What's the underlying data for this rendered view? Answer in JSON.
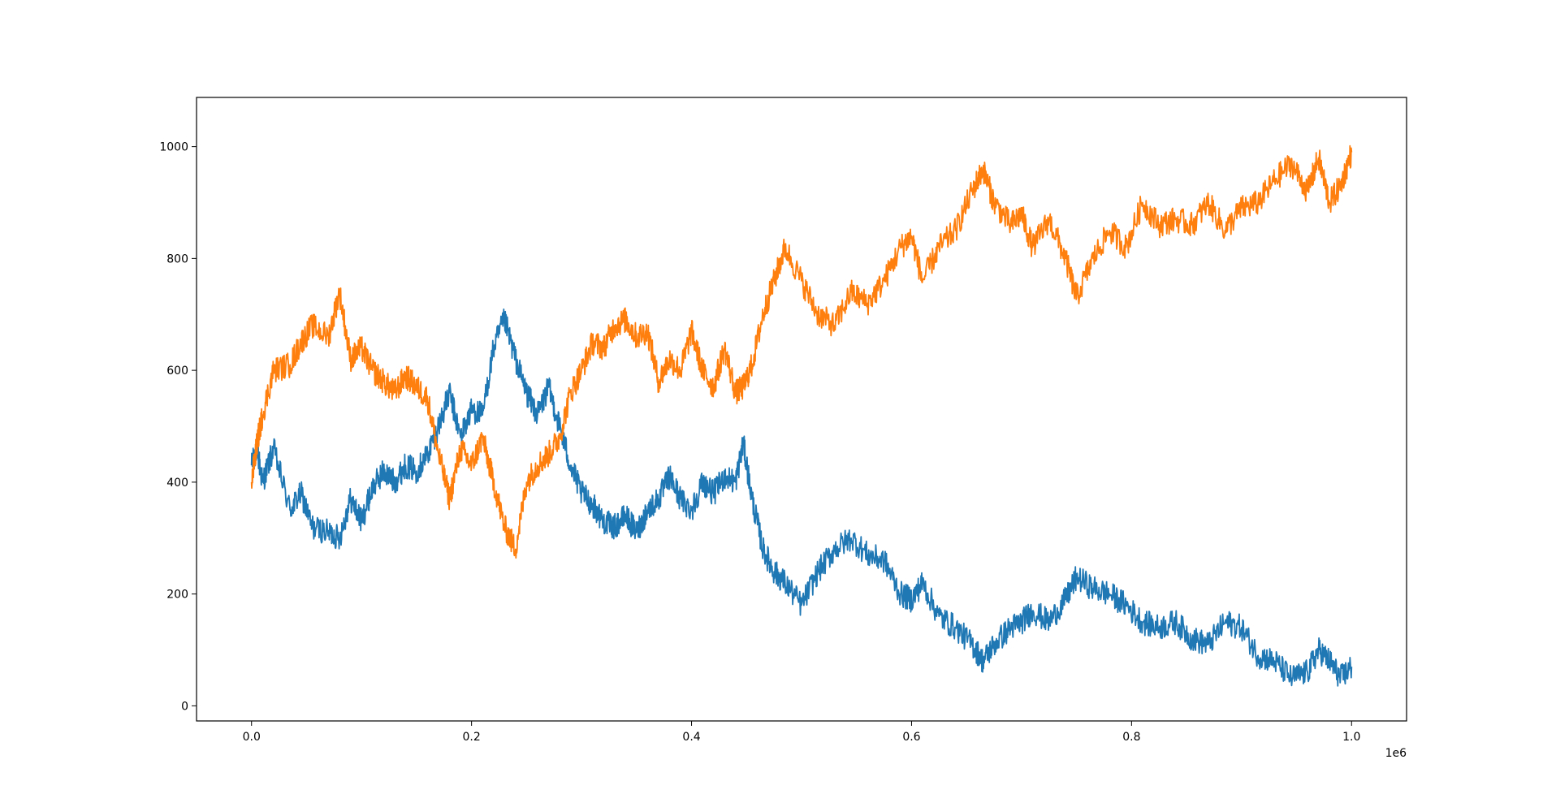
{
  "chart_data": {
    "type": "line",
    "title": "",
    "xlabel": "",
    "ylabel": "",
    "x_offset_text": "1e6",
    "xlim": [
      -50000,
      1050000
    ],
    "ylim": [
      -27,
      1088
    ],
    "xticks": [
      0,
      200000,
      400000,
      600000,
      800000,
      1000000
    ],
    "xtick_labels": [
      "0.0",
      "0.2",
      "0.4",
      "0.6",
      "0.8",
      "1.0"
    ],
    "yticks": [
      0,
      200,
      400,
      600,
      800,
      1000
    ],
    "ytick_labels": [
      "0",
      "200",
      "400",
      "600",
      "800",
      "1000"
    ],
    "grid": false,
    "legend": false,
    "series": [
      {
        "color": "#1f77b4",
        "x": [
          0,
          5000,
          10000,
          20000,
          35000,
          45000,
          55000,
          70000,
          80000,
          90000,
          100000,
          110000,
          120000,
          130000,
          140000,
          150000,
          160000,
          170000,
          180000,
          190000,
          200000,
          210000,
          220000,
          230000,
          240000,
          250000,
          260000,
          270000,
          280000,
          290000,
          300000,
          310000,
          320000,
          330000,
          340000,
          350000,
          360000,
          370000,
          380000,
          390000,
          400000,
          410000,
          420000,
          430000,
          440000,
          447000,
          455000,
          465000,
          475000,
          485000,
          500000,
          515000,
          530000,
          545000,
          560000,
          575000,
          590000,
          600000,
          610000,
          625000,
          640000,
          655000,
          665000,
          675000,
          690000,
          700000,
          710000,
          725000,
          740000,
          750000,
          765000,
          780000,
          795000,
          810000,
          825000,
          840000,
          855000,
          870000,
          885000,
          900000,
          915000,
          930000,
          945000,
          960000,
          970000,
          980000,
          990000,
          1000000
        ],
        "y": [
          430,
          460,
          400,
          460,
          350,
          380,
          320,
          310,
          300,
          370,
          330,
          390,
          420,
          400,
          430,
          420,
          450,
          500,
          560,
          480,
          530,
          520,
          640,
          690,
          620,
          560,
          520,
          570,
          500,
          430,
          380,
          360,
          330,
          320,
          340,
          310,
          350,
          370,
          410,
          370,
          350,
          400,
          380,
          410,
          400,
          470,
          370,
          280,
          240,
          220,
          180,
          240,
          280,
          300,
          270,
          260,
          200,
          190,
          220,
          160,
          140,
          110,
          80,
          110,
          140,
          150,
          170,
          150,
          190,
          230,
          210,
          200,
          180,
          150,
          140,
          150,
          120,
          110,
          150,
          140,
          90,
          80,
          50,
          60,
          100,
          80,
          50,
          70
        ]
      },
      {
        "color": "#ff7f0e",
        "x": [
          0,
          5000,
          10000,
          20000,
          35000,
          45000,
          55000,
          70000,
          80000,
          90000,
          100000,
          110000,
          120000,
          130000,
          140000,
          150000,
          160000,
          170000,
          180000,
          190000,
          200000,
          210000,
          220000,
          230000,
          240000,
          250000,
          260000,
          270000,
          280000,
          290000,
          300000,
          310000,
          320000,
          330000,
          340000,
          350000,
          360000,
          370000,
          380000,
          390000,
          400000,
          410000,
          420000,
          430000,
          440000,
          447000,
          455000,
          465000,
          475000,
          485000,
          500000,
          515000,
          530000,
          545000,
          560000,
          575000,
          590000,
          600000,
          610000,
          625000,
          640000,
          655000,
          665000,
          675000,
          690000,
          700000,
          710000,
          725000,
          740000,
          750000,
          765000,
          780000,
          795000,
          810000,
          825000,
          840000,
          855000,
          870000,
          885000,
          900000,
          915000,
          930000,
          945000,
          960000,
          970000,
          980000,
          990000,
          1000000
        ],
        "y": [
          400,
          470,
          520,
          600,
          610,
          650,
          680,
          660,
          740,
          620,
          640,
          600,
          580,
          560,
          590,
          570,
          550,
          450,
          370,
          460,
          430,
          480,
          400,
          320,
          280,
          400,
          430,
          450,
          480,
          560,
          600,
          650,
          640,
          680,
          690,
          660,
          670,
          580,
          620,
          600,
          670,
          600,
          570,
          640,
          560,
          570,
          610,
          700,
          760,
          820,
          760,
          700,
          680,
          740,
          720,
          760,
          820,
          840,
          760,
          820,
          850,
          920,
          960,
          900,
          860,
          880,
          820,
          870,
          800,
          730,
          800,
          850,
          820,
          900,
          860,
          870,
          860,
          900,
          850,
          890,
          900,
          940,
          970,
          920,
          980,
          900,
          930,
          990
        ]
      }
    ]
  }
}
